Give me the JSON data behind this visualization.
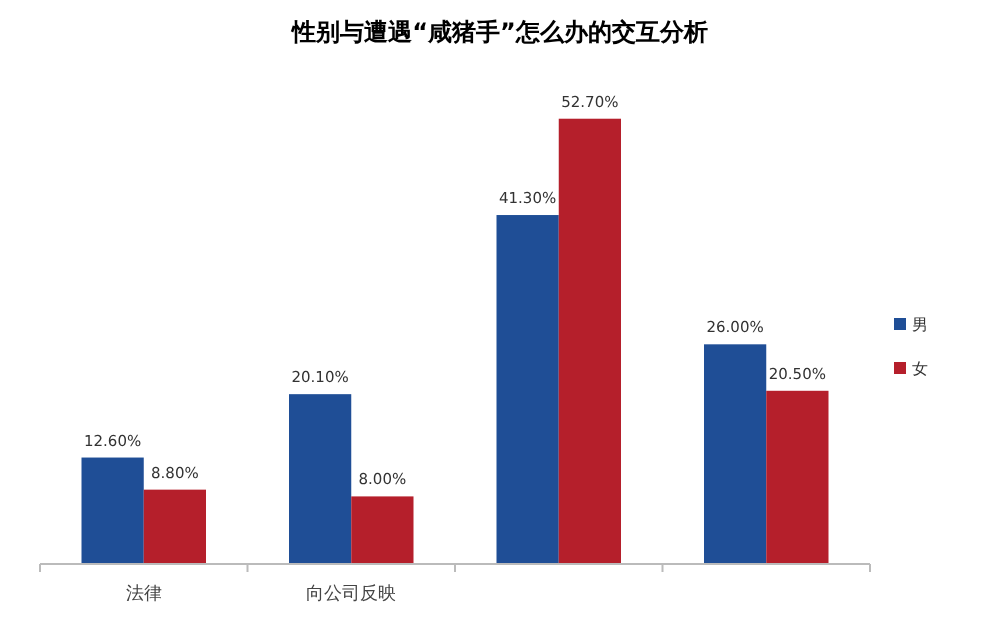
{
  "chart_data": {
    "type": "bar",
    "title": "性别与遭遇“咸猪手”怎么办的交互分析",
    "categories": [
      "法律",
      "向公司反映",
      null,
      null
    ],
    "series": [
      {
        "name": "男",
        "color": "#1f4e96",
        "values": [
          12.6,
          20.1,
          41.3,
          26.0
        ],
        "value_labels": [
          "12.60%",
          "20.10%",
          "41.30%",
          "26.00%"
        ]
      },
      {
        "name": "女",
        "color": "#b51f2b",
        "values": [
          8.8,
          8.0,
          52.7,
          20.5
        ],
        "value_labels": [
          "8.80%",
          "8.00%",
          "52.70%",
          "20.50%"
        ]
      }
    ],
    "legend": "right",
    "grid": false
  }
}
